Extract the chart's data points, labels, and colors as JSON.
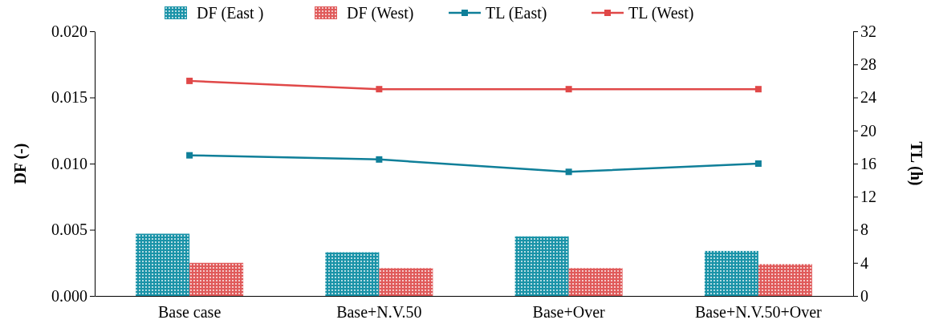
{
  "chart_data": {
    "type": "bar",
    "categories": [
      "Base case",
      "Base+N.V.50",
      "Base+Over",
      "Base+N.V.50+Over"
    ],
    "ylabel": "DF (-)",
    "y2label": "TL (h)",
    "ylim": [
      0,
      0.02
    ],
    "yticks": [
      {
        "value": 0,
        "label": "0.000"
      },
      {
        "value": 0.005,
        "label": "0.005"
      },
      {
        "value": 0.01,
        "label": "0.010"
      },
      {
        "value": 0.015,
        "label": "0.015"
      },
      {
        "value": 0.02,
        "label": "0.020"
      }
    ],
    "y2lim": [
      0,
      32
    ],
    "y2ticks": [
      0,
      4,
      8,
      12,
      16,
      20,
      24,
      28,
      32
    ],
    "legend": "top",
    "marker": "square",
    "series": [
      {
        "name": "DF (East )",
        "color": "#1a93a8",
        "values": [
          0.0047,
          0.0033,
          0.0045,
          0.0034
        ]
      },
      {
        "name": "DF (West)",
        "color": "#e05a5a",
        "values": [
          0.0025,
          0.0021,
          0.0021,
          0.0024
        ]
      },
      {
        "name": "TL (East)",
        "type": "line",
        "axis": "y2",
        "color": "#0f7f99",
        "values": [
          17,
          16.5,
          15,
          16
        ]
      },
      {
        "name": "TL (West)",
        "type": "line",
        "axis": "y2",
        "color": "#e04848",
        "values": [
          26,
          25,
          25,
          25
        ]
      }
    ]
  }
}
